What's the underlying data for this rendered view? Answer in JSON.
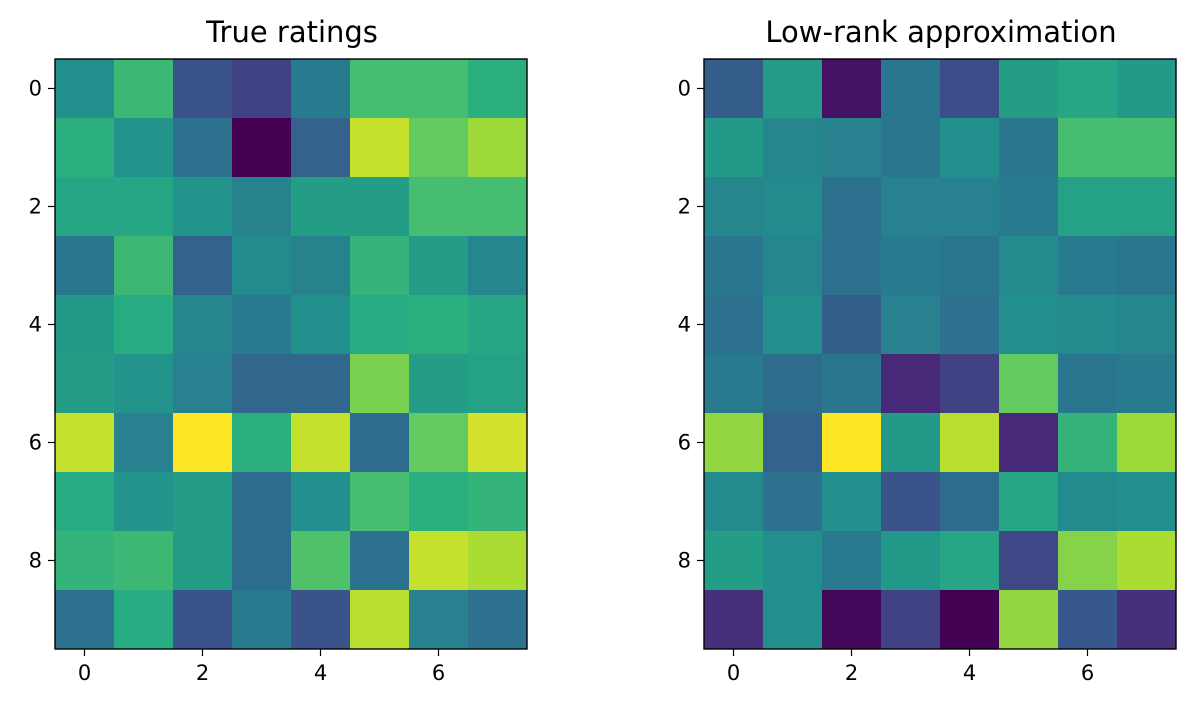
{
  "chart_data": [
    {
      "type": "heatmap",
      "title": "True ratings",
      "xlabel": "",
      "ylabel": "",
      "x_ticks": [
        0,
        2,
        4,
        6
      ],
      "y_ticks": [
        0,
        2,
        4,
        6,
        8
      ],
      "grid": false,
      "colormap": "viridis",
      "values": [
        [
          0.5,
          0.68,
          0.26,
          0.2,
          0.42,
          0.7,
          0.7,
          0.64
        ],
        [
          0.64,
          0.52,
          0.38,
          0.0,
          0.32,
          0.92,
          0.76,
          0.86
        ],
        [
          0.6,
          0.6,
          0.52,
          0.45,
          0.56,
          0.56,
          0.7,
          0.7
        ],
        [
          0.4,
          0.68,
          0.32,
          0.48,
          0.45,
          0.66,
          0.56,
          0.46
        ],
        [
          0.54,
          0.62,
          0.46,
          0.42,
          0.5,
          0.62,
          0.64,
          0.6
        ],
        [
          0.56,
          0.52,
          0.44,
          0.34,
          0.34,
          0.8,
          0.56,
          0.58
        ],
        [
          0.92,
          0.44,
          1.0,
          0.64,
          0.92,
          0.36,
          0.76,
          0.94
        ],
        [
          0.62,
          0.52,
          0.56,
          0.36,
          0.5,
          0.7,
          0.64,
          0.66
        ],
        [
          0.66,
          0.68,
          0.56,
          0.36,
          0.72,
          0.38,
          0.92,
          0.88
        ],
        [
          0.38,
          0.62,
          0.26,
          0.42,
          0.26,
          0.9,
          0.44,
          0.38
        ]
      ]
    },
    {
      "type": "heatmap",
      "title": "Low-rank approximation",
      "xlabel": "",
      "ylabel": "",
      "x_ticks": [
        0,
        2,
        4,
        6
      ],
      "y_ticks": [
        0,
        2,
        4,
        6,
        8
      ],
      "grid": false,
      "colormap": "viridis",
      "values": [
        [
          0.3,
          0.55,
          0.05,
          0.4,
          0.24,
          0.56,
          0.6,
          0.54
        ],
        [
          0.54,
          0.46,
          0.44,
          0.4,
          0.5,
          0.4,
          0.7,
          0.7
        ],
        [
          0.46,
          0.48,
          0.38,
          0.44,
          0.44,
          0.42,
          0.58,
          0.58
        ],
        [
          0.4,
          0.46,
          0.38,
          0.42,
          0.4,
          0.48,
          0.42,
          0.4
        ],
        [
          0.38,
          0.5,
          0.3,
          0.44,
          0.38,
          0.5,
          0.48,
          0.46
        ],
        [
          0.42,
          0.36,
          0.4,
          0.12,
          0.2,
          0.76,
          0.4,
          0.42
        ],
        [
          0.84,
          0.32,
          1.0,
          0.54,
          0.9,
          0.12,
          0.66,
          0.86
        ],
        [
          0.48,
          0.38,
          0.5,
          0.26,
          0.36,
          0.6,
          0.48,
          0.5
        ],
        [
          0.56,
          0.5,
          0.42,
          0.54,
          0.6,
          0.22,
          0.82,
          0.88
        ],
        [
          0.14,
          0.5,
          0.02,
          0.2,
          0.0,
          0.84,
          0.28,
          0.14
        ]
      ]
    }
  ]
}
